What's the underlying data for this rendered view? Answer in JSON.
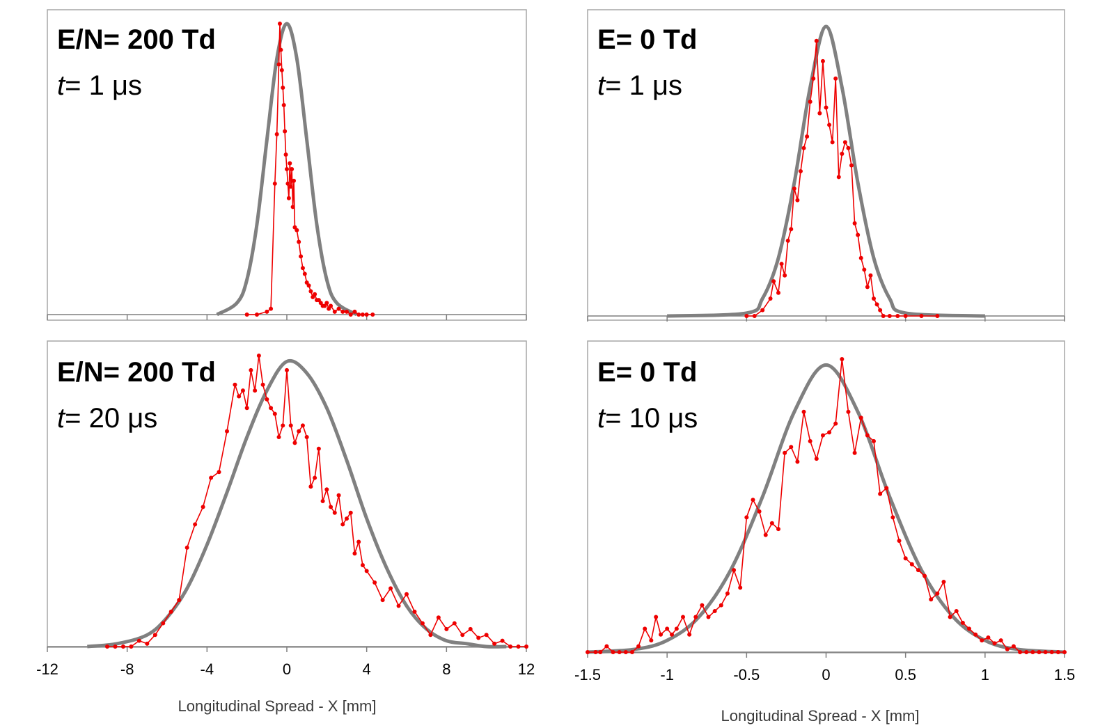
{
  "colors": {
    "model_curve": "#808080",
    "simulation": "#ee0000",
    "frame": "#a6a6a6",
    "axis": "#7f7f7f",
    "text": "#000000"
  },
  "bottom_labels": {
    "left": "Longitudinal Spread - X  [mm]",
    "right": "Longitudinal Spread - X  [mm]"
  },
  "chart_data": [
    {
      "type": "line",
      "title_bold": "E/N= 200 Td",
      "time_var": "t",
      "time_rest": "= 1 μs",
      "xlim": [
        -12,
        12
      ],
      "ylim": [
        0,
        1
      ],
      "ticks": [
        -12,
        -8,
        -4,
        0,
        4,
        8,
        12
      ],
      "show_tick_labels": false,
      "grid": false,
      "xlabel": "",
      "series": [
        {
          "style": "curve",
          "x": [
            -3.5,
            -2.5,
            -2,
            -1.5,
            -1,
            -0.5,
            0,
            0.5,
            1,
            1.5,
            2,
            2.5,
            3.5
          ],
          "y": [
            0.0,
            0.04,
            0.12,
            0.31,
            0.6,
            0.88,
            1.0,
            0.88,
            0.6,
            0.31,
            0.12,
            0.04,
            0.0
          ]
        },
        {
          "style": "markers",
          "x": [
            -2,
            -1.5,
            -1,
            -0.8,
            -0.6,
            -0.5,
            -0.4,
            -0.35,
            -0.3,
            -0.25,
            -0.2,
            -0.15,
            -0.1,
            -0.05,
            0.0,
            0.05,
            0.1,
            0.15,
            0.2,
            0.25,
            0.3,
            0.35,
            0.4,
            0.5,
            0.6,
            0.7,
            0.8,
            0.9,
            1.0,
            1.1,
            1.2,
            1.3,
            1.4,
            1.5,
            1.6,
            1.7,
            1.8,
            1.9,
            2.0,
            2.1,
            2.2,
            2.4,
            2.6,
            2.8,
            3.0,
            3.2,
            3.4,
            3.6,
            3.8,
            4.0,
            4.3
          ],
          "y": [
            0.0,
            0.0,
            0.01,
            0.02,
            0.45,
            0.62,
            0.86,
            1.0,
            0.91,
            0.84,
            0.78,
            0.72,
            0.63,
            0.55,
            0.5,
            0.45,
            0.4,
            0.52,
            0.44,
            0.5,
            0.37,
            0.46,
            0.3,
            0.29,
            0.25,
            0.2,
            0.16,
            0.14,
            0.11,
            0.1,
            0.08,
            0.06,
            0.07,
            0.05,
            0.05,
            0.04,
            0.03,
            0.03,
            0.04,
            0.02,
            0.03,
            0.01,
            0.02,
            0.01,
            0.01,
            0.0,
            0.01,
            0.0,
            0.0,
            0.0,
            0.0
          ]
        }
      ]
    },
    {
      "type": "line",
      "title_bold": "E= 0 Td",
      "time_var": "t",
      "time_rest": "= 1 μs",
      "xlim": [
        -1.5,
        1.5
      ],
      "ylim": [
        0,
        1
      ],
      "ticks": [
        -1.5,
        -1,
        -0.5,
        0,
        0.5,
        1,
        1.5
      ],
      "show_tick_labels": false,
      "grid": false,
      "xlabel": "",
      "series": [
        {
          "style": "curve",
          "x": [
            -1.0,
            -0.5,
            -0.4,
            -0.3,
            -0.2,
            -0.1,
            0.0,
            0.1,
            0.2,
            0.3,
            0.4,
            0.5,
            1.0
          ],
          "y": [
            0.0,
            0.01,
            0.06,
            0.2,
            0.46,
            0.79,
            1.0,
            0.79,
            0.46,
            0.2,
            0.06,
            0.01,
            0.0
          ]
        },
        {
          "style": "markers",
          "x": [
            -0.5,
            -0.45,
            -0.4,
            -0.35,
            -0.33,
            -0.3,
            -0.28,
            -0.26,
            -0.24,
            -0.22,
            -0.2,
            -0.18,
            -0.16,
            -0.14,
            -0.12,
            -0.1,
            -0.08,
            -0.06,
            -0.04,
            -0.02,
            0.0,
            0.02,
            0.04,
            0.06,
            0.08,
            0.1,
            0.12,
            0.14,
            0.16,
            0.18,
            0.2,
            0.22,
            0.24,
            0.26,
            0.28,
            0.3,
            0.32,
            0.34,
            0.36,
            0.4,
            0.45,
            0.5,
            0.6,
            0.7
          ],
          "y": [
            0.0,
            0.0,
            0.02,
            0.06,
            0.12,
            0.08,
            0.18,
            0.14,
            0.26,
            0.3,
            0.44,
            0.4,
            0.5,
            0.58,
            0.62,
            0.74,
            0.82,
            0.95,
            0.7,
            0.88,
            0.72,
            0.66,
            0.6,
            0.82,
            0.48,
            0.56,
            0.6,
            0.58,
            0.52,
            0.32,
            0.28,
            0.2,
            0.16,
            0.1,
            0.14,
            0.06,
            0.04,
            0.02,
            0.0,
            0.0,
            0.0,
            0.0,
            0.0,
            0.0
          ]
        }
      ]
    },
    {
      "type": "line",
      "title_bold": "E/N= 200 Td",
      "time_var": "t",
      "time_rest": "= 20 μs",
      "xlim": [
        -12,
        12
      ],
      "ylim": [
        0,
        1
      ],
      "ticks": [
        -12,
        -8,
        -4,
        0,
        4,
        8,
        12
      ],
      "show_tick_labels": true,
      "grid": false,
      "xlabel": "",
      "series": [
        {
          "style": "curve",
          "x": [
            -10,
            -8.5,
            -7,
            -6,
            -5,
            -4,
            -3,
            -2,
            -1,
            0,
            1,
            2,
            3,
            4,
            5,
            6,
            7,
            8,
            9,
            10,
            11
          ],
          "y": [
            0.0,
            0.01,
            0.04,
            0.1,
            0.2,
            0.35,
            0.53,
            0.72,
            0.88,
            0.98,
            0.94,
            0.82,
            0.64,
            0.44,
            0.27,
            0.14,
            0.06,
            0.02,
            0.01,
            0.0,
            0.0
          ]
        },
        {
          "style": "markers",
          "x": [
            -9,
            -8.6,
            -8.2,
            -7.8,
            -7.4,
            -7.0,
            -6.6,
            -6.2,
            -5.8,
            -5.4,
            -5.0,
            -4.6,
            -4.2,
            -3.8,
            -3.4,
            -3.0,
            -2.6,
            -2.4,
            -2.2,
            -2.0,
            -1.8,
            -1.6,
            -1.4,
            -1.2,
            -1.0,
            -0.8,
            -0.6,
            -0.4,
            -0.2,
            0.0,
            0.2,
            0.4,
            0.6,
            0.8,
            1.0,
            1.2,
            1.4,
            1.6,
            1.8,
            2.0,
            2.2,
            2.4,
            2.6,
            2.8,
            3.0,
            3.2,
            3.4,
            3.6,
            3.8,
            4.0,
            4.4,
            4.8,
            5.2,
            5.6,
            6.0,
            6.4,
            6.8,
            7.2,
            7.6,
            8.0,
            8.4,
            8.8,
            9.2,
            9.6,
            10.0,
            10.4,
            10.8,
            11.2,
            11.6,
            12.0
          ],
          "y": [
            0.0,
            0.0,
            0.0,
            0.0,
            0.02,
            0.01,
            0.04,
            0.08,
            0.12,
            0.16,
            0.34,
            0.42,
            0.48,
            0.58,
            0.6,
            0.74,
            0.9,
            0.86,
            0.88,
            0.82,
            0.95,
            0.88,
            1.0,
            0.9,
            0.85,
            0.82,
            0.8,
            0.72,
            0.76,
            0.95,
            0.76,
            0.7,
            0.74,
            0.76,
            0.72,
            0.55,
            0.58,
            0.68,
            0.5,
            0.54,
            0.48,
            0.46,
            0.52,
            0.42,
            0.44,
            0.46,
            0.32,
            0.36,
            0.28,
            0.26,
            0.22,
            0.16,
            0.2,
            0.14,
            0.18,
            0.12,
            0.08,
            0.04,
            0.1,
            0.06,
            0.08,
            0.04,
            0.06,
            0.03,
            0.04,
            0.01,
            0.02,
            0.0,
            0.0,
            0.0
          ]
        }
      ]
    },
    {
      "type": "line",
      "title_bold": "E= 0 Td",
      "time_var": "t",
      "time_rest": "= 10 μs",
      "xlim": [
        -1.5,
        1.5
      ],
      "ylim": [
        0,
        1
      ],
      "ticks": [
        -1.5,
        -1,
        -0.5,
        0,
        0.5,
        1,
        1.5
      ],
      "show_tick_labels": true,
      "grid": false,
      "xlabel": "",
      "series": [
        {
          "style": "curve",
          "x": [
            -1.5,
            -1.2,
            -1.0,
            -0.8,
            -0.6,
            -0.4,
            -0.2,
            0.0,
            0.2,
            0.4,
            0.6,
            0.8,
            1.0,
            1.2,
            1.5
          ],
          "y": [
            0.0,
            0.01,
            0.04,
            0.12,
            0.28,
            0.53,
            0.82,
            0.98,
            0.82,
            0.53,
            0.28,
            0.12,
            0.04,
            0.01,
            0.0
          ]
        },
        {
          "style": "markers",
          "x": [
            -1.5,
            -1.45,
            -1.42,
            -1.38,
            -1.34,
            -1.3,
            -1.26,
            -1.22,
            -1.18,
            -1.14,
            -1.1,
            -1.07,
            -1.04,
            -1.0,
            -0.97,
            -0.94,
            -0.9,
            -0.86,
            -0.82,
            -0.78,
            -0.74,
            -0.7,
            -0.66,
            -0.62,
            -0.58,
            -0.54,
            -0.5,
            -0.46,
            -0.42,
            -0.38,
            -0.34,
            -0.3,
            -0.26,
            -0.22,
            -0.18,
            -0.14,
            -0.1,
            -0.06,
            -0.02,
            0.02,
            0.06,
            0.1,
            0.14,
            0.18,
            0.22,
            0.26,
            0.3,
            0.34,
            0.38,
            0.42,
            0.46,
            0.5,
            0.54,
            0.58,
            0.62,
            0.66,
            0.7,
            0.74,
            0.78,
            0.82,
            0.86,
            0.9,
            0.94,
            0.98,
            1.02,
            1.06,
            1.1,
            1.14,
            1.18,
            1.22,
            1.26,
            1.3,
            1.34,
            1.38,
            1.42,
            1.46,
            1.5
          ],
          "y": [
            0.0,
            0.0,
            0.0,
            0.02,
            0.0,
            0.0,
            0.0,
            0.0,
            0.02,
            0.08,
            0.04,
            0.12,
            0.06,
            0.08,
            0.06,
            0.08,
            0.12,
            0.06,
            0.12,
            0.16,
            0.12,
            0.14,
            0.16,
            0.2,
            0.28,
            0.22,
            0.46,
            0.52,
            0.48,
            0.4,
            0.44,
            0.42,
            0.68,
            0.7,
            0.65,
            0.82,
            0.72,
            0.66,
            0.74,
            0.75,
            0.78,
            1.0,
            0.82,
            0.68,
            0.8,
            0.74,
            0.72,
            0.54,
            0.56,
            0.46,
            0.38,
            0.32,
            0.3,
            0.28,
            0.26,
            0.18,
            0.2,
            0.24,
            0.12,
            0.14,
            0.1,
            0.08,
            0.06,
            0.04,
            0.05,
            0.03,
            0.04,
            0.01,
            0.02,
            0.0,
            0.0,
            0.0,
            0.0,
            0.0,
            0.0,
            0.0,
            0.0
          ]
        }
      ]
    }
  ]
}
